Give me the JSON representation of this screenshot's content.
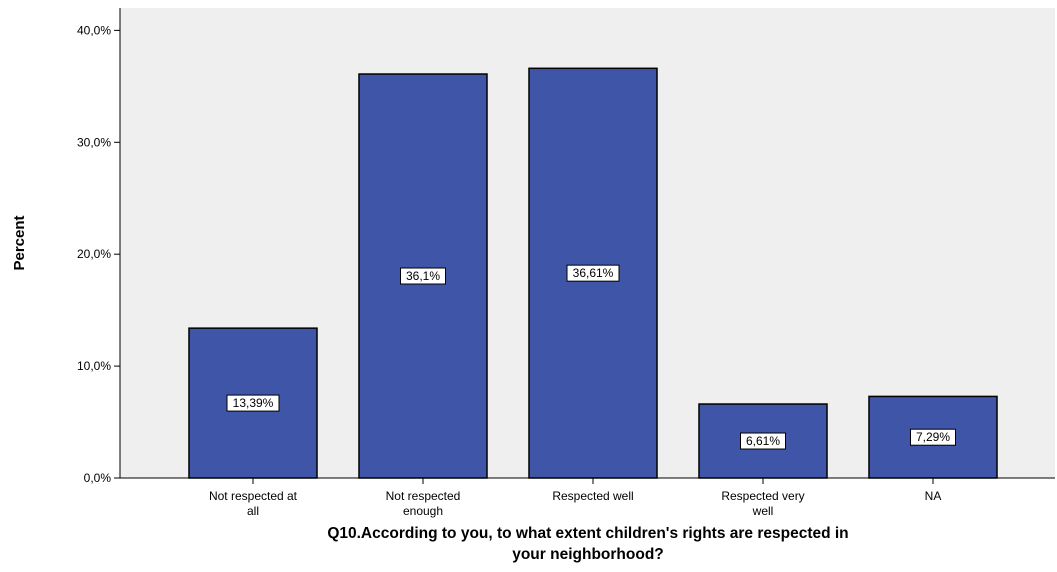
{
  "chart_data": {
    "type": "bar",
    "categories": [
      [
        "Not respected at",
        "all"
      ],
      [
        "Not respected",
        "enough"
      ],
      [
        "Respected well"
      ],
      [
        "Respected very",
        "well"
      ],
      [
        "NA"
      ]
    ],
    "values": [
      13.39,
      36.1,
      36.61,
      6.61,
      7.29
    ],
    "data_labels": [
      "13,39%",
      "36,1%",
      "36,61%",
      "6,61%",
      "7,29%"
    ],
    "yticks": [
      0,
      10,
      20,
      30,
      40
    ],
    "ytick_labels": [
      "0,0%",
      "10,0%",
      "20,0%",
      "30,0%",
      "40,0%"
    ],
    "ylim": [
      0,
      42
    ],
    "ylabel": "Percent",
    "xlabel": [
      "Q10.According to you, to what extent children's rights are respected in",
      "your neighborhood?"
    ],
    "colors": {
      "bar": "#3f56a8",
      "plot_background": "#efefef",
      "bar_stroke": "#000000"
    },
    "grid": false
  }
}
